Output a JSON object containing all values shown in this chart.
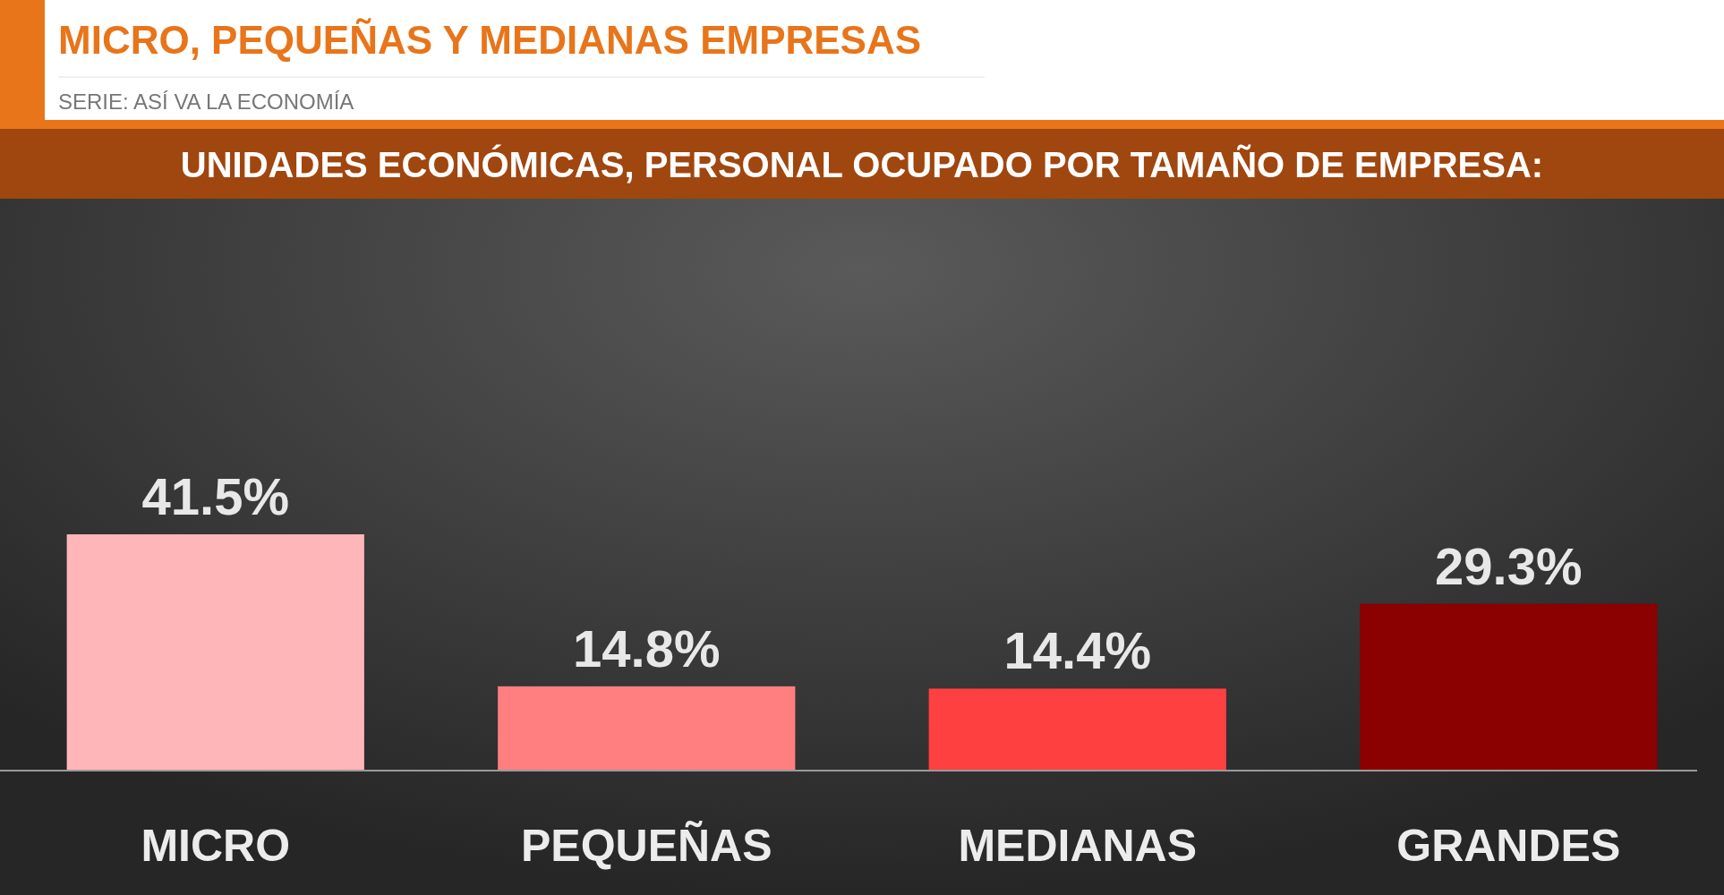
{
  "chart_data": {
    "type": "bar",
    "title": "MICRO, PEQUEÑAS Y MEDIANAS EMPRESAS",
    "subtitle": "UNIDADES ECONÓMICAS, PERSONAL OCUPADO POR TAMAÑO DE EMPRESA:",
    "annotations": [
      "SERIE: ASÍ VA LA ECONOMÍA"
    ],
    "categories": [
      "MICRO",
      "PEQUEÑAS",
      "MEDIANAS",
      "GRANDES"
    ],
    "values": [
      41.5,
      14.8,
      14.4,
      29.3
    ],
    "value_labels": [
      "41.5%",
      "14.8%",
      "14.4%",
      "29.3%"
    ],
    "colors": [
      "#ffb6b9",
      "#ff7f80",
      "#ff4040",
      "#8b0000"
    ]
  }
}
